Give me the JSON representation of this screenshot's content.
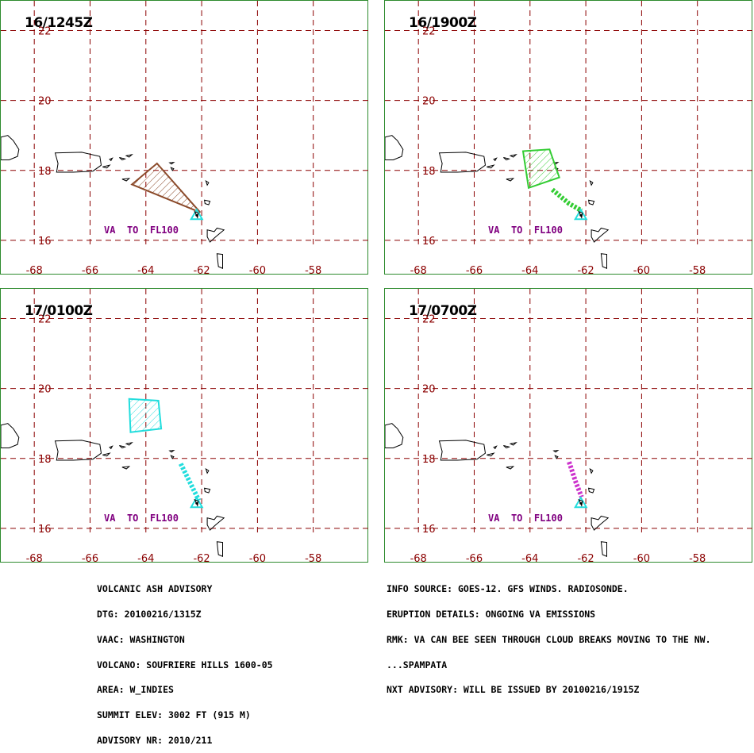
{
  "panels": [
    {
      "time": "16/1245Z",
      "ash_color": "#8b4a2a",
      "poly": [
        [
          -63.6,
          18.2
        ],
        [
          -62.05,
          16.8
        ],
        [
          -64.5,
          17.6
        ]
      ],
      "streams": [],
      "label": "VA  TO  FL100"
    },
    {
      "time": "16/1900Z",
      "ash_color": "#33cc33",
      "poly": [
        [
          -64.25,
          18.55
        ],
        [
          -63.3,
          18.6
        ],
        [
          -62.95,
          17.8
        ],
        [
          -64.05,
          17.5
        ]
      ],
      "streams": [
        [
          [
            -63.2,
            17.45
          ],
          [
            -62.6,
            17.05
          ],
          [
            -62.15,
            16.85
          ]
        ]
      ],
      "label": "VA  TO  FL100"
    },
    {
      "time": "17/0100Z",
      "ash_color": "#22dddd",
      "poly": [
        [
          -64.6,
          19.7
        ],
        [
          -63.55,
          19.65
        ],
        [
          -63.45,
          18.85
        ],
        [
          -64.55,
          18.75
        ]
      ],
      "streams": [
        [
          [
            -62.75,
            17.85
          ],
          [
            -62.35,
            17.2
          ],
          [
            -62.1,
            16.8
          ]
        ]
      ],
      "label": "VA  TO  FL100"
    },
    {
      "time": "17/0700Z",
      "ash_color": "#cc33cc",
      "poly": [],
      "streams": [
        [
          [
            -62.6,
            17.9
          ],
          [
            -62.35,
            17.3
          ],
          [
            -62.15,
            16.9
          ]
        ]
      ],
      "label": "VA  TO  FL100"
    }
  ],
  "axes": {
    "lon_ticks": [
      "-68",
      "-66",
      "-64",
      "-62",
      "-60",
      "-58"
    ],
    "lat_ticks": [
      "22",
      "20",
      "18",
      "16"
    ],
    "lon_range": [
      -69.2,
      -56.0
    ],
    "lat_range": [
      15.0,
      22.85
    ]
  },
  "colors": {
    "grid": "#8b0000",
    "frame": "#2e8b2e",
    "label": "#800080",
    "vent": "#22dddd"
  },
  "footer_left": [
    "VOLCANIC ASH ADVISORY",
    "DTG: 20100216/1315Z",
    "VAAC: WASHINGTON",
    "VOLCANO: SOUFRIERE HILLS 1600-05",
    "AREA: W_INDIES",
    "SUMMIT ELEV: 3002 FT (915 M)",
    "ADVISORY NR: 2010/211"
  ],
  "footer_right": [
    "INFO SOURCE: GOES-12. GFS WINDS. RADIOSONDE.",
    "ERUPTION DETAILS: ONGOING VA EMISSIONS",
    "RMK: VA CAN BEE SEEN THROUGH CLOUD BREAKS MOVING TO THE NW.",
    "...SPAMPATA",
    "NXT ADVISORY: WILL BE ISSUED BY 20100216/1915Z"
  ]
}
